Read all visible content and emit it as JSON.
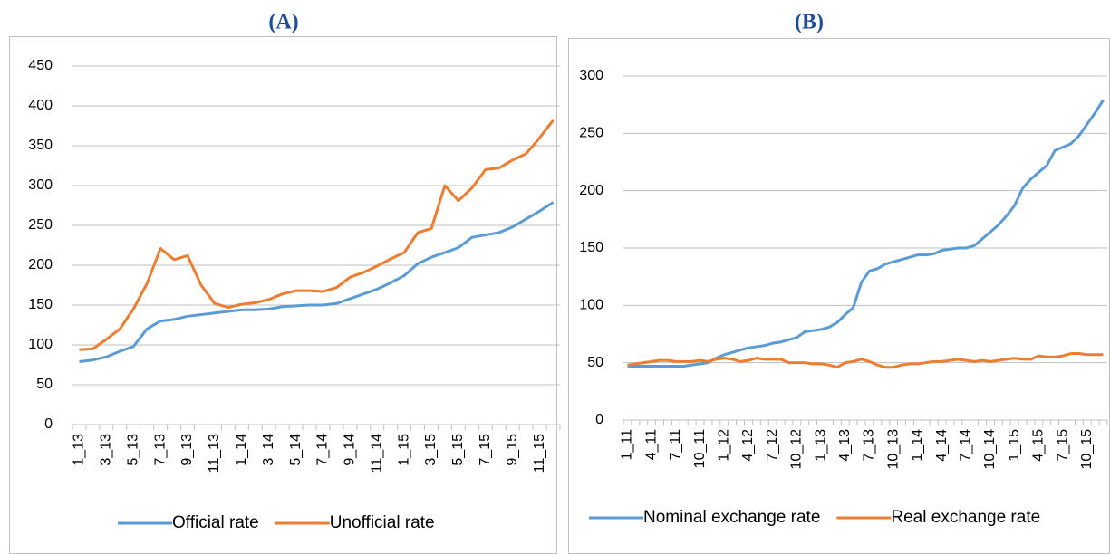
{
  "chart_data": [
    {
      "type": "line",
      "title": "(A)",
      "categories": [
        "1_13",
        null,
        "3_13",
        null,
        "5_13",
        null,
        "7_13",
        null,
        "9_13",
        null,
        "11_13",
        null,
        "1_14",
        null,
        "3_14",
        null,
        "5_14",
        null,
        "7_14",
        null,
        "9_14",
        null,
        "11_14",
        null,
        "1_15",
        null,
        "3_15",
        null,
        "5_15",
        null,
        "7_15",
        null,
        "9_15",
        null,
        "11_15",
        null
      ],
      "series": [
        {
          "name": "Official rate",
          "color": "#5b9bd5",
          "values": [
            79,
            81,
            85,
            92,
            98,
            120,
            130,
            132,
            136,
            138,
            140,
            142,
            144,
            144,
            145,
            148,
            149,
            150,
            150,
            152,
            158,
            164,
            170,
            178,
            187,
            202,
            210,
            216,
            222,
            235,
            238,
            241,
            248,
            258,
            268,
            279
          ]
        },
        {
          "name": "Unofficial rate",
          "color": "#ed7d31",
          "values": [
            94,
            95,
            107,
            120,
            145,
            177,
            221,
            207,
            212,
            175,
            152,
            147,
            151,
            153,
            157,
            164,
            168,
            168,
            167,
            172,
            185,
            191,
            199,
            208,
            216,
            241,
            246,
            300,
            281,
            297,
            320,
            322,
            332,
            340,
            360,
            382
          ]
        }
      ],
      "ylim": [
        0,
        450
      ],
      "yticks": [
        0,
        50,
        100,
        150,
        200,
        250,
        300,
        350,
        400,
        450
      ],
      "grid": true,
      "legend": "bottom"
    },
    {
      "type": "line",
      "title": "(B)",
      "categories": [
        "1_11",
        null,
        null,
        "4_11",
        null,
        null,
        "7_11",
        null,
        null,
        "10_11",
        null,
        null,
        "1_12",
        null,
        null,
        "4_12",
        null,
        null,
        "7_12",
        null,
        null,
        "10_12",
        null,
        null,
        "1_13",
        null,
        null,
        "4_13",
        null,
        null,
        "7_13",
        null,
        null,
        "10_13",
        null,
        null,
        "1_14",
        null,
        null,
        "4_14",
        null,
        null,
        "7_14",
        null,
        null,
        "10_14",
        null,
        null,
        "1_15",
        null,
        null,
        "4_15",
        null,
        null,
        "7_15",
        null,
        null,
        "10_15",
        null,
        null
      ],
      "series": [
        {
          "name": "Nominal exchange rate",
          "color": "#5b9bd5",
          "values": [
            47,
            47,
            47,
            47,
            47,
            47,
            47,
            47,
            48,
            49,
            50,
            54,
            57,
            59,
            61,
            63,
            64,
            65,
            67,
            68,
            70,
            72,
            77,
            78,
            79,
            81,
            85,
            92,
            98,
            120,
            130,
            132,
            136,
            138,
            140,
            142,
            144,
            144,
            145,
            148,
            149,
            150,
            150,
            152,
            158,
            164,
            170,
            178,
            187,
            202,
            210,
            216,
            222,
            235,
            238,
            241,
            248,
            258,
            268,
            279
          ]
        },
        {
          "name": "Real exchange rate",
          "color": "#ed7d31",
          "values": [
            48,
            49,
            50,
            51,
            52,
            52,
            51,
            51,
            51,
            52,
            51,
            53,
            54,
            53,
            51,
            52,
            54,
            53,
            53,
            53,
            50,
            50,
            50,
            49,
            49,
            48,
            46,
            50,
            51,
            53,
            51,
            48,
            46,
            46,
            48,
            49,
            49,
            50,
            51,
            51,
            52,
            53,
            52,
            51,
            52,
            51,
            52,
            53,
            54,
            53,
            53,
            56,
            55,
            55,
            56,
            58,
            58,
            57,
            57,
            57
          ]
        }
      ],
      "ylim": [
        0,
        300
      ],
      "yticks": [
        0,
        50,
        100,
        150,
        200,
        250,
        300
      ],
      "grid": true,
      "legend": "bottom"
    }
  ]
}
